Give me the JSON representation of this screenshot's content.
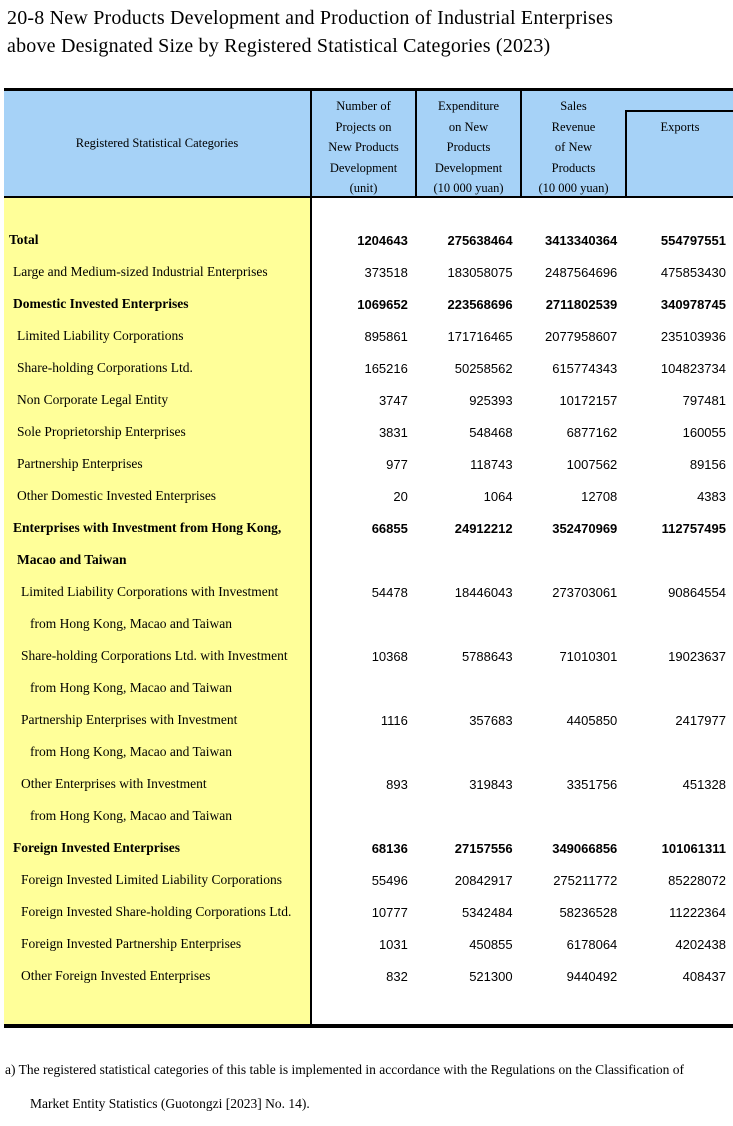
{
  "title": {
    "line1": "20-8 New Products Development and Production of Industrial Enterprises",
    "line2": "above Designated Size by Registered Statistical Categories (2023)"
  },
  "colors": {
    "header_bg": "#a6d2f7",
    "category_bg": "#ffff99",
    "border": "#000000",
    "text": "#000000"
  },
  "table": {
    "category_header": "Registered Statistical Categories",
    "columns": [
      {
        "id": "projects",
        "label": "Number of\nProjects on\nNew Products\nDevelopment\n(unit)"
      },
      {
        "id": "expenditure",
        "label": "Expenditure\non New\nProducts\nDevelopment\n(10 000 yuan)"
      },
      {
        "id": "sales",
        "label": "Sales\nRevenue\nof New\nProducts\n(10 000 yuan)"
      },
      {
        "id": "exports",
        "label": "Exports"
      }
    ],
    "rows": [
      {
        "label": "Total",
        "indent": 0,
        "bold": true,
        "values": [
          "1204643",
          "275638464",
          "3413340364",
          "554797551"
        ]
      },
      {
        "label": "Large and Medium-sized Industrial Enterprises",
        "indent": 1,
        "bold": false,
        "values": [
          "373518",
          "183058075",
          "2487564696",
          "475853430"
        ]
      },
      {
        "label": "Domestic Invested Enterprises",
        "indent": 1,
        "bold": true,
        "values": [
          "1069652",
          "223568696",
          "2711802539",
          "340978745"
        ]
      },
      {
        "label": "Limited Liability Corporations",
        "indent": 2,
        "bold": false,
        "values": [
          "895861",
          "171716465",
          "2077958607",
          "235103936"
        ]
      },
      {
        "label": "Share-holding Corporations Ltd.",
        "indent": 2,
        "bold": false,
        "values": [
          "165216",
          "50258562",
          "615774343",
          "104823734"
        ]
      },
      {
        "label": "Non Corporate Legal Entity",
        "indent": 2,
        "bold": false,
        "values": [
          "3747",
          "925393",
          "10172157",
          "797481"
        ]
      },
      {
        "label": "Sole Proprietorship Enterprises",
        "indent": 2,
        "bold": false,
        "values": [
          "3831",
          "548468",
          "6877162",
          "160055"
        ]
      },
      {
        "label": "Partnership Enterprises",
        "indent": 2,
        "bold": false,
        "values": [
          "977",
          "118743",
          "1007562",
          "89156"
        ]
      },
      {
        "label": "Other Domestic Invested Enterprises",
        "indent": 2,
        "bold": false,
        "values": [
          "20",
          "1064",
          "12708",
          "4383"
        ]
      },
      {
        "label": "Enterprises with Investment from Hong Kong,",
        "indent": 1,
        "bold": true,
        "values": [
          "66855",
          "24912212",
          "352470969",
          "112757495"
        ]
      },
      {
        "label": "Macao and Taiwan",
        "indent": 2,
        "bold": true,
        "values": null
      },
      {
        "label": "Limited Liability Corporations with Investment",
        "indent": 3,
        "bold": false,
        "values": [
          "54478",
          "18446043",
          "273703061",
          "90864554"
        ]
      },
      {
        "label": "from Hong Kong, Macao and Taiwan",
        "indent": 4,
        "bold": false,
        "values": null
      },
      {
        "label": "Share-holding Corporations Ltd. with Investment",
        "indent": 3,
        "bold": false,
        "values": [
          "10368",
          "5788643",
          "71010301",
          "19023637"
        ]
      },
      {
        "label": "from Hong Kong, Macao and Taiwan",
        "indent": 4,
        "bold": false,
        "values": null
      },
      {
        "label": "Partnership Enterprises with Investment",
        "indent": 3,
        "bold": false,
        "values": [
          "1116",
          "357683",
          "4405850",
          "2417977"
        ]
      },
      {
        "label": "from Hong Kong, Macao and Taiwan",
        "indent": 4,
        "bold": false,
        "values": null
      },
      {
        "label": "Other Enterprises with Investment",
        "indent": 3,
        "bold": false,
        "values": [
          "893",
          "319843",
          "3351756",
          "451328"
        ]
      },
      {
        "label": "from Hong Kong, Macao and Taiwan",
        "indent": 4,
        "bold": false,
        "values": null
      },
      {
        "label": "Foreign Invested Enterprises",
        "indent": 1,
        "bold": true,
        "values": [
          "68136",
          "27157556",
          "349066856",
          "101061311"
        ]
      },
      {
        "label": "Foreign Invested Limited Liability Corporations",
        "indent": 3,
        "bold": false,
        "values": [
          "55496",
          "20842917",
          "275211772",
          "85228072"
        ]
      },
      {
        "label": "Foreign Invested Share-holding Corporations Ltd.",
        "indent": 3,
        "bold": false,
        "values": [
          "10777",
          "5342484",
          "58236528",
          "11222364"
        ]
      },
      {
        "label": "Foreign Invested Partnership Enterprises",
        "indent": 3,
        "bold": false,
        "values": [
          "1031",
          "450855",
          "6178064",
          "4202438"
        ]
      },
      {
        "label": "Other Foreign Invested Enterprises",
        "indent": 3,
        "bold": false,
        "values": [
          "832",
          "521300",
          "9440492",
          "408437"
        ]
      }
    ]
  },
  "footnote": {
    "line1": "a) The registered statistical categories of this table is implemented in accordance with the Regulations on the Classification of",
    "line2": "Market Entity Statistics (Guotongzi [2023] No. 14)."
  }
}
